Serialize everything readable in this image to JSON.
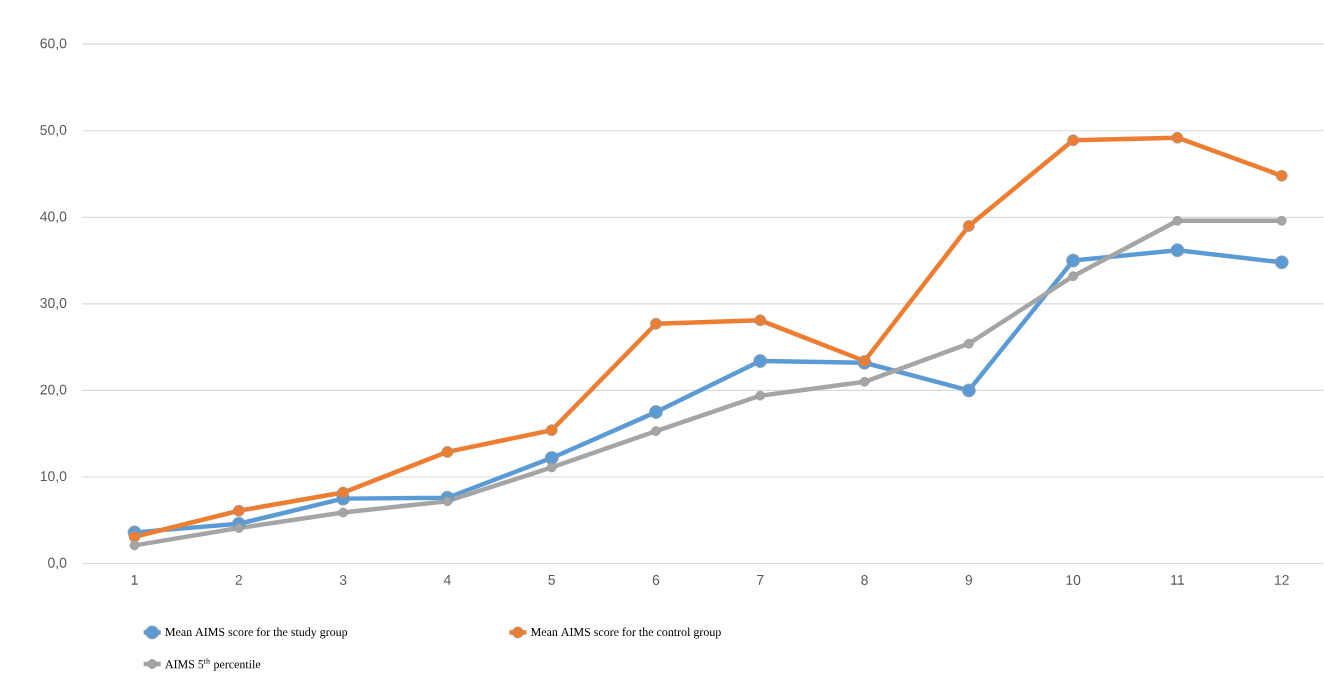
{
  "chart_data": {
    "type": "line",
    "categories": [
      "1",
      "2",
      "3",
      "4",
      "5",
      "6",
      "7",
      "8",
      "9",
      "10",
      "11",
      "12"
    ],
    "series": [
      {
        "name": "Mean AIMS score for the study group",
        "color": "#5b9bd5",
        "values": [
          3.6,
          4.6,
          7.5,
          7.6,
          12.2,
          17.5,
          23.4,
          23.2,
          20.0,
          35.0,
          36.2,
          34.8
        ]
      },
      {
        "name": "Mean AIMS score for the control group",
        "color": "#ed7d31",
        "values": [
          3.1,
          6.1,
          8.2,
          12.9,
          15.4,
          27.7,
          28.1,
          23.4,
          39.0,
          48.9,
          49.2,
          44.8
        ]
      },
      {
        "name": "AIMS 5$^{th}$ percentile",
        "color": "#a5a5a5",
        "values": [
          2.1,
          4.1,
          5.9,
          7.2,
          11.1,
          15.3,
          19.4,
          21.0,
          25.4,
          33.2,
          39.6,
          39.6
        ]
      }
    ],
    "ylim": [
      0,
      60
    ],
    "yticks": [
      {
        "value": 0,
        "label": "0,0"
      },
      {
        "value": 10,
        "label": "10,0"
      },
      {
        "value": 20,
        "label": "20,0"
      },
      {
        "value": 30,
        "label": "30,0"
      },
      {
        "value": 40,
        "label": "40,0"
      },
      {
        "value": 50,
        "label": "50,0"
      },
      {
        "value": 60,
        "label": "60,0"
      }
    ],
    "grid": "y",
    "legend": "bottom",
    "marker": "circle",
    "line_style": "solid"
  }
}
